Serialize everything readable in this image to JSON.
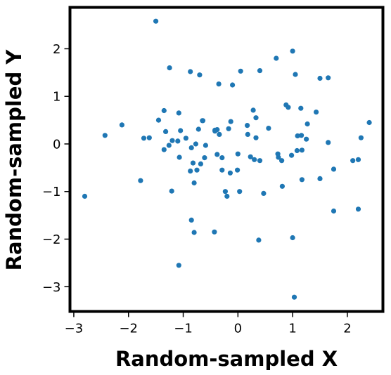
{
  "chart_data": {
    "type": "scatter",
    "title": "",
    "xlabel": "Random-sampled X",
    "ylabel": "Random-sampled Y",
    "xlim": [
      -3.07,
      2.65
    ],
    "ylim": [
      -3.52,
      2.87
    ],
    "x_ticks": [
      -3,
      -2,
      -1,
      0,
      1,
      2
    ],
    "x_tick_labels": [
      "−3",
      "−2",
      "−1",
      "0",
      "1",
      "2"
    ],
    "y_ticks": [
      -3,
      -2,
      -1,
      0,
      1,
      2
    ],
    "y_tick_labels": [
      "−3",
      "−2",
      "−1",
      "0",
      "1",
      "2"
    ],
    "grid": false,
    "legend": "none",
    "marker_color": "#1f77b4",
    "series": [
      {
        "x": [
          -1.5,
          -1.25,
          -0.87,
          -0.7,
          -0.35,
          -0.1,
          0.05,
          0.4,
          0.7,
          1.0,
          1.05,
          1.5,
          1.65,
          2.4,
          -1.45,
          -1.35,
          -1.08,
          -0.64,
          -0.42,
          -0.38,
          -0.13,
          0.17,
          0.28,
          0.33,
          0.56,
          0.88,
          0.92,
          1.15,
          1.27,
          1.43,
          -2.43,
          -2.12,
          -1.72,
          -1.62,
          -1.32,
          -1.26,
          -1.2,
          -1.1,
          -1.05,
          -0.95,
          -0.85,
          -0.77,
          -0.72,
          -0.65,
          -0.59,
          -0.42,
          -0.34,
          -0.29,
          -0.17,
          0.18,
          0.23,
          0.33,
          0.74,
          1.09,
          1.16,
          1.25,
          1.65,
          2.25,
          -1.35,
          -1.07,
          -0.82,
          -0.61,
          -0.38,
          0.0,
          0.3,
          0.4,
          0.73,
          0.8,
          0.98,
          1.08,
          1.17,
          -0.87,
          -0.75,
          -0.68,
          -0.29,
          -0.14,
          -0.01,
          2.1,
          2.2,
          -2.8,
          -1.78,
          -1.21,
          -0.8,
          -0.23,
          -0.2,
          0.03,
          0.47,
          0.81,
          1.17,
          1.5,
          1.75,
          -0.85,
          -0.8,
          -0.43,
          0.38,
          1.0,
          1.75,
          2.2,
          -1.08,
          1.03
        ],
        "y": [
          2.58,
          1.6,
          1.52,
          1.45,
          1.26,
          1.24,
          1.53,
          1.54,
          1.8,
          1.95,
          1.46,
          1.38,
          1.39,
          0.45,
          0.5,
          0.7,
          0.65,
          0.49,
          0.27,
          0.3,
          0.47,
          0.39,
          0.71,
          0.55,
          0.33,
          0.82,
          0.77,
          0.75,
          0.42,
          0.67,
          0.18,
          0.4,
          0.12,
          0.13,
          0.26,
          -0.03,
          0.07,
          0.06,
          0.28,
          0.12,
          -0.08,
          0.0,
          0.31,
          0.49,
          -0.03,
          0.29,
          0.2,
          -0.29,
          0.32,
          0.2,
          -0.27,
          0.13,
          -0.28,
          0.17,
          0.18,
          0.1,
          0.03,
          0.13,
          -0.12,
          -0.28,
          -0.4,
          -0.29,
          -0.22,
          -0.21,
          -0.33,
          -0.35,
          -0.21,
          -0.35,
          -0.24,
          -0.14,
          -0.13,
          -0.57,
          -0.55,
          -0.42,
          -0.55,
          -0.61,
          -0.55,
          -0.35,
          -0.33,
          -1.1,
          -0.77,
          -0.99,
          -0.82,
          -1.0,
          -1.1,
          -1.0,
          -1.04,
          -0.89,
          -0.75,
          -0.73,
          -0.53,
          -1.6,
          -1.86,
          -1.85,
          -2.02,
          -1.97,
          -1.41,
          -1.37,
          -2.55,
          -3.22
        ]
      }
    ]
  }
}
